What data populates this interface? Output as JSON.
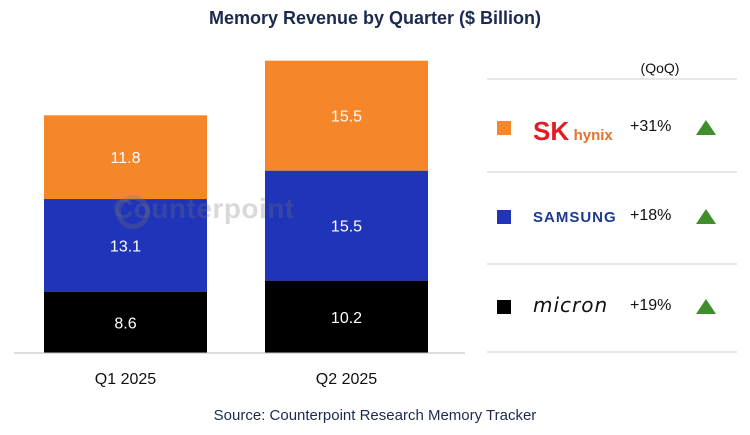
{
  "chart_data": {
    "type": "bar",
    "stacked": true,
    "title": "Memory Revenue by Quarter ($ Billion)",
    "categories": [
      "Q1 2025",
      "Q2 2025"
    ],
    "series": [
      {
        "name": "micron",
        "color": "#000000",
        "values": [
          8.6,
          10.2
        ],
        "qoq": "+19%"
      },
      {
        "name": "SAMSUNG",
        "color": "#1f34b8",
        "values": [
          13.1,
          15.5
        ],
        "qoq": "+18%"
      },
      {
        "name": "SK hynix",
        "color": "#f5872a",
        "values": [
          11.8,
          15.5
        ],
        "qoq": "+31%"
      }
    ],
    "ylim": [
      0,
      42
    ],
    "grid": false,
    "legend_header": "(QoQ)",
    "source": "Source: Counterpoint Research Memory Tracker",
    "watermark": "Counterpoint"
  },
  "legend": {
    "sk_mark": "SK",
    "sk_sub": "hynix",
    "samsung": "SAMSUNG",
    "micron": "micron"
  }
}
